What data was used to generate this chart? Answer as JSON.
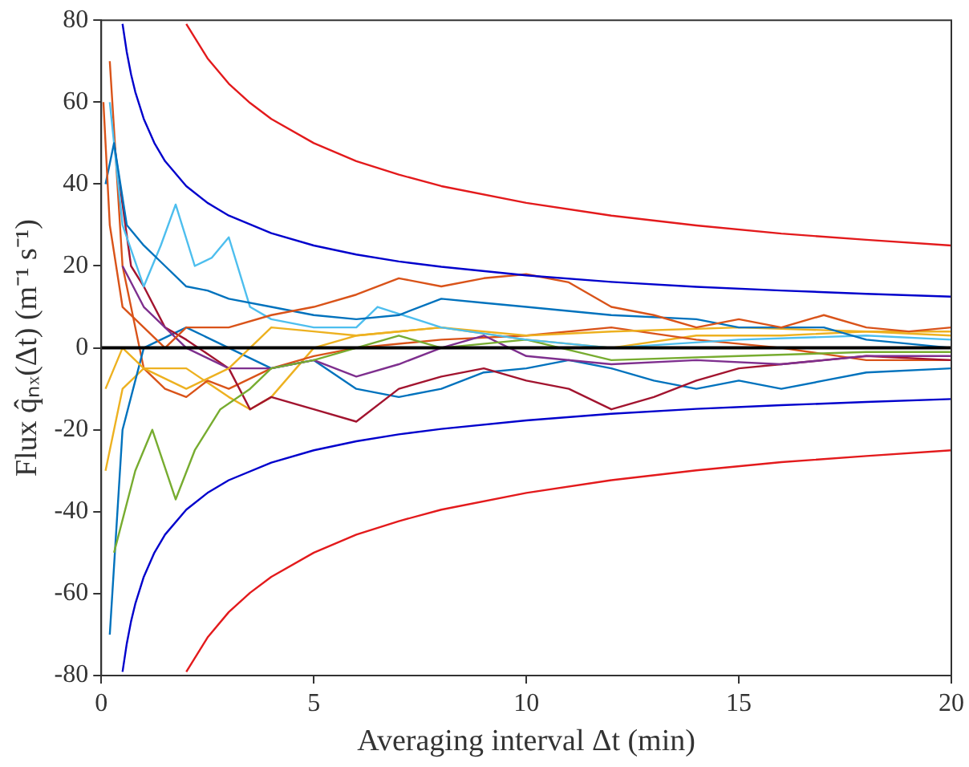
{
  "chart_data": {
    "type": "line",
    "xlabel": "Averaging interval Δt (min)",
    "ylabel": "Flux q̂ₙₓ(Δt) (m⁻¹ s⁻¹)",
    "xlim": [
      0,
      20
    ],
    "xticks": [
      0,
      5,
      10,
      15,
      20
    ],
    "ylim": [
      -80,
      80
    ],
    "yticks": [
      -80,
      -60,
      -40,
      -20,
      0,
      20,
      40,
      60,
      80
    ],
    "grid": false,
    "legend": false,
    "marker": "none",
    "line_style": "solid",
    "ref_lines": [
      {
        "axis": "y",
        "value": 0,
        "color": "#000000"
      }
    ],
    "series": [
      {
        "color": "#0000cc",
        "x": [
          0.5,
          0.6,
          0.7,
          0.8,
          1,
          1.25,
          1.5,
          2,
          2.5,
          3,
          4,
          5,
          6,
          7,
          8,
          10,
          12,
          14,
          16,
          18,
          20
        ],
        "values": [
          79.1,
          72.2,
          66.8,
          62.5,
          55.9,
          50.0,
          45.6,
          39.5,
          35.4,
          32.3,
          28.0,
          25.0,
          22.8,
          21.1,
          19.8,
          17.7,
          16.1,
          14.9,
          14.0,
          13.2,
          12.5
        ]
      },
      {
        "color": "#0000cc",
        "x": [
          0.5,
          0.6,
          0.7,
          0.8,
          1,
          1.25,
          1.5,
          2,
          2.5,
          3,
          4,
          5,
          6,
          7,
          8,
          10,
          12,
          14,
          16,
          18,
          20
        ],
        "values": [
          -79.1,
          -72.2,
          -66.8,
          -62.5,
          -55.9,
          -50.0,
          -45.6,
          -39.5,
          -35.4,
          -32.3,
          -28.0,
          -25.0,
          -22.8,
          -21.1,
          -19.8,
          -17.7,
          -16.1,
          -14.9,
          -14.0,
          -13.2,
          -12.5
        ]
      },
      {
        "color": "#e31a1c",
        "x": [
          2,
          2.5,
          3,
          3.5,
          4,
          5,
          6,
          7,
          8,
          10,
          12,
          14,
          16,
          18,
          20
        ],
        "values": [
          79.1,
          70.7,
          64.5,
          59.8,
          55.9,
          50.0,
          45.6,
          42.3,
          39.5,
          35.4,
          32.3,
          29.9,
          27.9,
          26.4,
          25.0
        ]
      },
      {
        "color": "#e31a1c",
        "x": [
          2,
          2.5,
          3,
          3.5,
          4,
          5,
          6,
          7,
          8,
          10,
          12,
          14,
          16,
          18,
          20
        ],
        "values": [
          -79.1,
          -70.7,
          -64.5,
          -59.8,
          -55.9,
          -50.0,
          -45.6,
          -42.3,
          -39.5,
          -35.4,
          -32.3,
          -29.9,
          -27.9,
          -26.4,
          -25.0
        ]
      },
      {
        "color": "#d95319",
        "x": [
          0.05,
          0.2,
          0.5,
          1,
          1.5,
          2,
          3,
          4,
          5,
          6,
          7,
          8,
          9,
          10,
          11,
          12,
          13,
          14,
          15,
          16,
          17,
          18,
          19,
          20
        ],
        "values": [
          60,
          30,
          10,
          5,
          0,
          5,
          5,
          8,
          10,
          13,
          17,
          15,
          17,
          18,
          16,
          10,
          8,
          5,
          7,
          5,
          8,
          5,
          4,
          5
        ]
      },
      {
        "color": "#0072bd",
        "x": [
          0.1,
          0.3,
          0.6,
          1,
          1.5,
          2,
          2.5,
          3,
          4,
          5,
          6,
          7,
          8,
          9,
          10,
          12,
          14,
          15,
          17,
          18,
          20
        ],
        "values": [
          40,
          50,
          30,
          25,
          20,
          15,
          14,
          12,
          10,
          8,
          7,
          8,
          12,
          11,
          10,
          8,
          7,
          5,
          5,
          2,
          0
        ]
      },
      {
        "color": "#4dbeee",
        "x": [
          0.2,
          0.5,
          1,
          1.4,
          1.75,
          2.2,
          2.6,
          3,
          3.5,
          4,
          5,
          6,
          6.5,
          8,
          10,
          12,
          15,
          18,
          20
        ],
        "values": [
          60,
          30,
          15,
          25,
          35,
          20,
          22,
          27,
          10,
          7,
          5,
          5,
          10,
          5,
          2,
          0,
          2,
          3,
          2
        ]
      },
      {
        "color": "#edb120",
        "x": [
          0.1,
          0.5,
          1,
          2,
          3,
          4,
          5,
          6,
          8,
          10,
          12,
          15,
          18,
          20
        ],
        "values": [
          -10,
          0,
          -5,
          -10,
          -5,
          5,
          4,
          3,
          5,
          3,
          4,
          5,
          4,
          3
        ]
      },
      {
        "color": "#77ac30",
        "x": [
          0.3,
          0.8,
          1.2,
          1.75,
          2.2,
          2.8,
          3.5,
          4,
          5,
          6,
          7,
          8,
          10,
          12,
          15,
          18,
          20
        ],
        "values": [
          -50,
          -30,
          -20,
          -37,
          -25,
          -15,
          -10,
          -5,
          -3,
          0,
          3,
          0,
          2,
          -3,
          -2,
          -1,
          -1
        ]
      },
      {
        "color": "#7e2f8e",
        "x": [
          0.5,
          1,
          1.5,
          2,
          3,
          4,
          5,
          6,
          7,
          8,
          9,
          10,
          12,
          14,
          16,
          18,
          20
        ],
        "values": [
          20,
          10,
          5,
          0,
          -5,
          -5,
          -3,
          -7,
          -4,
          0,
          3,
          -2,
          -4,
          -3,
          -4,
          -2,
          -2
        ]
      },
      {
        "color": "#a2142f",
        "x": [
          0.3,
          0.7,
          1,
          1.5,
          2,
          3,
          3.5,
          4,
          5,
          6,
          7,
          8,
          9,
          10,
          11,
          12,
          13,
          14,
          15,
          16,
          17,
          18,
          20
        ],
        "values": [
          50,
          20,
          15,
          5,
          2,
          -5,
          -15,
          -12,
          -15,
          -18,
          -10,
          -7,
          -5,
          -8,
          -10,
          -15,
          -12,
          -8,
          -5,
          -4,
          -3,
          -2,
          -3
        ]
      },
      {
        "color": "#0072bd",
        "x": [
          0.2,
          0.5,
          1,
          2,
          3,
          4,
          5,
          6,
          7,
          8,
          9,
          10,
          11,
          12,
          13,
          14,
          15,
          16,
          17,
          18,
          20
        ],
        "values": [
          -70,
          -20,
          0,
          5,
          0,
          -5,
          -3,
          -10,
          -12,
          -10,
          -6,
          -5,
          -3,
          -5,
          -8,
          -10,
          -8,
          -10,
          -8,
          -6,
          -5
        ]
      },
      {
        "color": "#d95319",
        "x": [
          0.2,
          0.5,
          1,
          1.5,
          2,
          2.5,
          3,
          4,
          5,
          6,
          8,
          10,
          12,
          14,
          16,
          18,
          20
        ],
        "values": [
          70,
          20,
          -5,
          -10,
          -12,
          -8,
          -10,
          -5,
          -2,
          0,
          2,
          3,
          5,
          2,
          0,
          -3,
          -3
        ]
      },
      {
        "color": "#edb120",
        "x": [
          0.1,
          0.5,
          1,
          2,
          3,
          3.5,
          4,
          5,
          6,
          8,
          10,
          12,
          14,
          16,
          18,
          20
        ],
        "values": [
          -30,
          -10,
          -5,
          -5,
          -12,
          -15,
          -12,
          0,
          3,
          5,
          2,
          0,
          3,
          3,
          4,
          4
        ]
      }
    ]
  }
}
